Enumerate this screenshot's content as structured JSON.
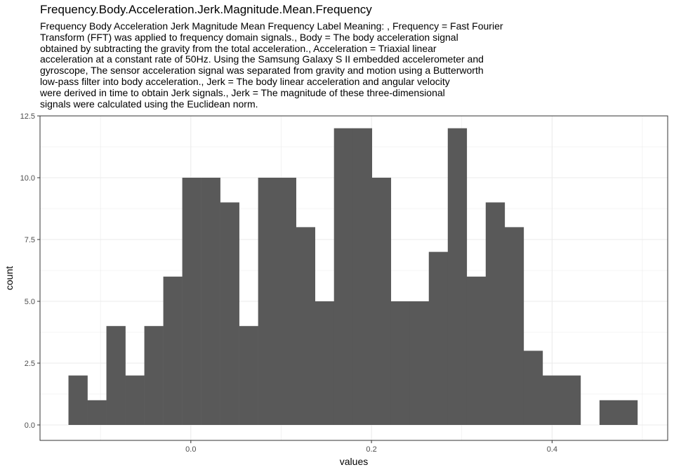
{
  "chart_data": {
    "type": "bar",
    "title": "Frequency.Body.Acceleration.Jerk.Magnitude.Mean.Frequency",
    "subtitle": "Frequency Body Acceleration Jerk Magnitude Mean Frequency Label Meaning: , Frequency = Fast Fourier\nTransform (FFT) was applied to frequency domain signals., Body = The body acceleration signal\nobtained by subtracting the gravity from the total acceleration., Acceleration = Triaxial linear\nacceleration at a constant rate of 50Hz. Using the Samsung Galaxy S II embedded accelerometer and\ngyroscope, The sensor acceleration signal was separated from gravity and motion using a Butterworth\nlow-pass filter into body acceleration., Jerk = The body linear acceleration and angular velocity\nwere derived in time to obtain Jerk signals., Jerk = The magnitude of these three-dimensional\nsignals were calculated using the Euclidean norm.",
    "xlabel": "values",
    "ylabel": "count",
    "xlim": [
      -0.167,
      0.528
    ],
    "ylim": [
      -0.625,
      12.5
    ],
    "bin_start": -0.1355,
    "bin_width": 0.021,
    "counts": [
      2,
      1,
      4,
      2,
      4,
      6,
      10,
      10,
      9,
      4,
      10,
      10,
      8,
      5,
      12,
      12,
      10,
      5,
      5,
      7,
      12,
      6,
      9,
      8,
      3,
      2,
      2,
      0,
      1,
      1
    ],
    "x_ticks": [
      0.0,
      0.2,
      0.4
    ],
    "x_tick_labels": [
      "0.0",
      "0.2",
      "0.4"
    ],
    "y_ticks": [
      0.0,
      2.5,
      5.0,
      7.5,
      10.0,
      12.5
    ],
    "y_tick_labels": [
      "0.0",
      "2.5",
      "5.0",
      "7.5",
      "10.0",
      "12.5"
    ],
    "bar_color": "#595959",
    "grid": true,
    "grid_color": "#ebebeb",
    "panel_border_color": "#333333"
  }
}
